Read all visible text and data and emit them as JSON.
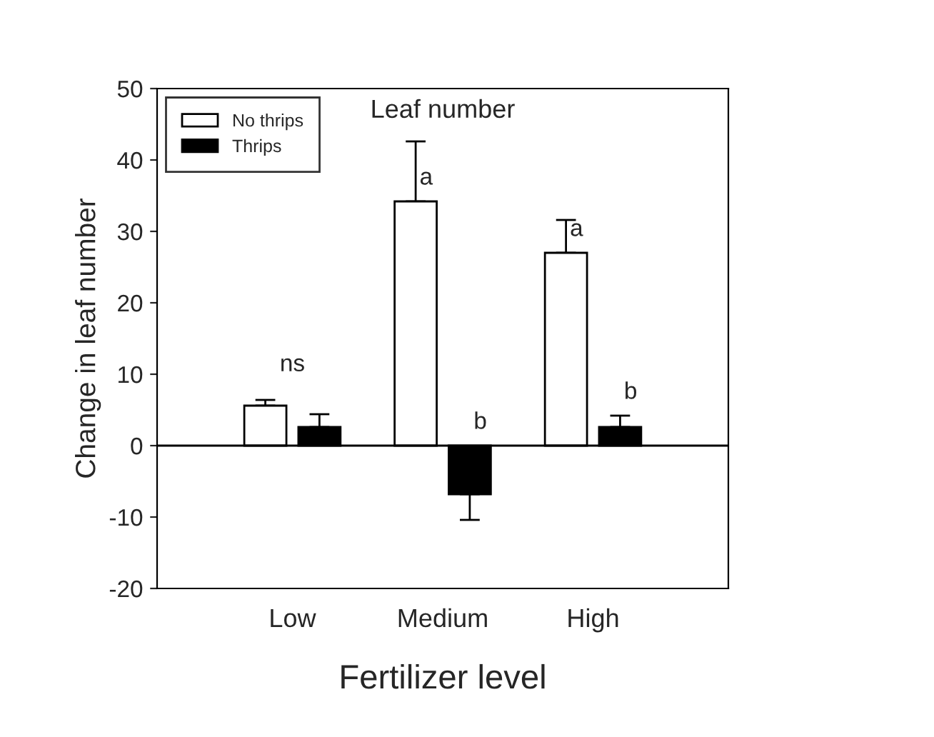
{
  "chart_data": {
    "type": "bar",
    "title": "Leaf number",
    "xlabel": "Fertilizer level",
    "ylabel": "Change in leaf number",
    "categories": [
      "Low",
      "Medium",
      "High"
    ],
    "series": [
      {
        "name": "No thrips",
        "color": "#ffffff",
        "values": [
          5.6,
          34.2,
          27.0
        ],
        "errors": [
          [
            5.6,
            6.4
          ],
          [
            34.2,
            42.6
          ],
          [
            27.0,
            31.6
          ]
        ]
      },
      {
        "name": "Thrips",
        "color": "#000000",
        "values": [
          2.6,
          -6.8,
          2.6
        ],
        "errors": [
          [
            2.6,
            4.4
          ],
          [
            -10.4,
            -6.8
          ],
          [
            2.6,
            4.2
          ]
        ]
      }
    ],
    "ylim": [
      -20,
      50
    ],
    "yticks": [
      -20,
      -10,
      0,
      10,
      20,
      30,
      40,
      50
    ],
    "ref_lines": [
      {
        "axis": "y",
        "value": 0,
        "color": "#000000"
      }
    ],
    "annotations": [
      "ns",
      "a",
      "b",
      "a",
      "b"
    ],
    "grid": false,
    "legend": "top left"
  }
}
